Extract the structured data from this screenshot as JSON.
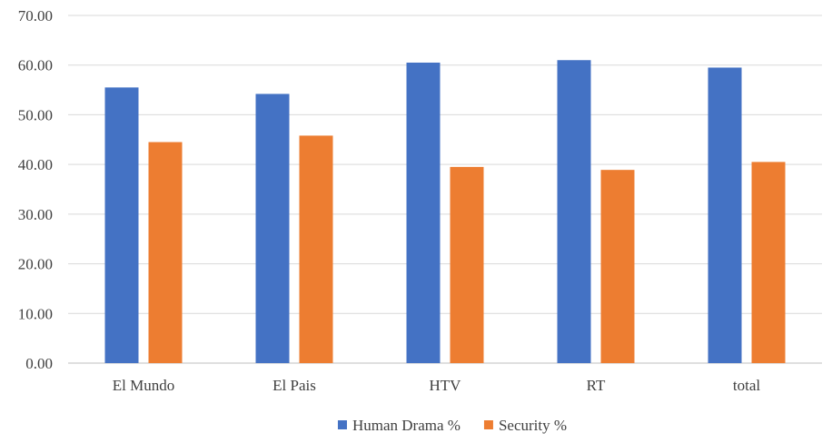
{
  "chart_data": {
    "type": "bar",
    "title": "",
    "xlabel": "",
    "ylabel": "",
    "categories": [
      "El Mundo",
      "El Pais",
      "HTV",
      "RT",
      "total"
    ],
    "series": [
      {
        "name": "Human Drama %",
        "color": "#4472C4",
        "values": [
          55.5,
          54.2,
          60.5,
          61.0,
          59.5
        ]
      },
      {
        "name": "Security %",
        "color": "#ED7D31",
        "values": [
          44.5,
          45.8,
          39.5,
          38.9,
          40.5
        ]
      }
    ],
    "ylim": [
      0,
      70
    ],
    "yticks": [
      "0.00",
      "10.00",
      "20.00",
      "30.00",
      "40.00",
      "50.00",
      "60.00",
      "70.00"
    ],
    "grid": true,
    "legend": "bottom-center"
  }
}
